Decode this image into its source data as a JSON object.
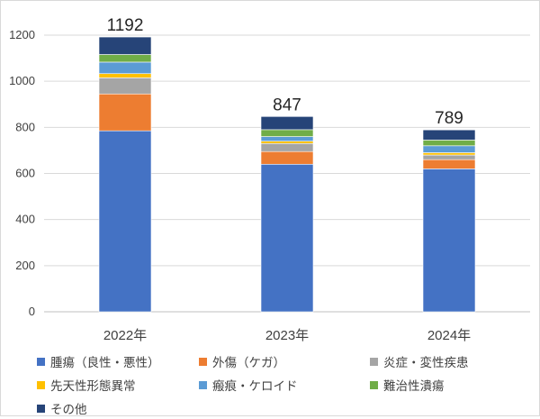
{
  "chart_data": {
    "type": "bar",
    "stacked": true,
    "categories": [
      "2022年",
      "2023年",
      "2024年"
    ],
    "totals": [
      1192,
      847,
      789
    ],
    "ylim": [
      0,
      1200
    ],
    "yticks": [
      0,
      200,
      400,
      600,
      800,
      1000,
      1200
    ],
    "grid": true,
    "legend_position": "bottom",
    "series": [
      {
        "name": "腫瘍（良性・悪性）",
        "color": "#4472C4",
        "values": [
          785,
          640,
          620
        ]
      },
      {
        "name": "外傷（ケガ）",
        "color": "#ED7D31",
        "values": [
          160,
          55,
          40
        ]
      },
      {
        "name": "炎症・変性疾患",
        "color": "#A5A5A5",
        "values": [
          70,
          35,
          20
        ]
      },
      {
        "name": "先天性形態異常",
        "color": "#FFC000",
        "values": [
          18,
          10,
          10
        ]
      },
      {
        "name": "瘢痕・ケロイド",
        "color": "#5B9BD5",
        "values": [
          50,
          20,
          30
        ]
      },
      {
        "name": "難治性潰瘍",
        "color": "#70AD47",
        "values": [
          33,
          30,
          25
        ]
      },
      {
        "name": "その他",
        "color": "#264478",
        "values": [
          76,
          57,
          44
        ]
      }
    ]
  }
}
